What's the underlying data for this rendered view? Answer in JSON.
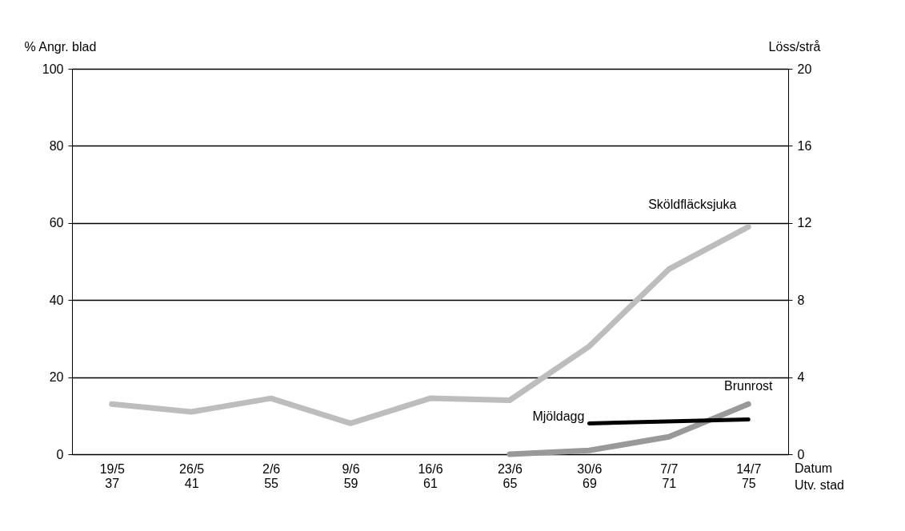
{
  "chart_data": {
    "type": "line",
    "categories": [
      "19/5\n37",
      "26/5\n41",
      "2/6\n55",
      "9/6\n59",
      "16/6\n61",
      "23/6\n65",
      "30/6\n69",
      "7/7\n71",
      "14/7\n75"
    ],
    "xlabel": "Datum\nUtv. stad",
    "ylabel": "% Angr. blad",
    "y2label": "Löss/strå",
    "ylim": [
      0,
      100
    ],
    "yticks": [
      0,
      20,
      40,
      60,
      80,
      100
    ],
    "y2lim": [
      0,
      20
    ],
    "y2ticks": [
      0,
      4,
      8,
      12,
      16,
      20
    ],
    "grid": "y",
    "line_style": "solid",
    "marker": "none",
    "series": [
      {
        "name": "Sköldfläcksjuka",
        "color": "#bdbdbd",
        "values": [
          13,
          11,
          14.5,
          8,
          14.5,
          14,
          28,
          48,
          59
        ]
      },
      {
        "name": "Brunrost",
        "color": "#999999",
        "values": [
          null,
          null,
          null,
          null,
          null,
          0,
          1,
          4.5,
          13
        ]
      },
      {
        "name": "Mjöldagg",
        "color": "#000000",
        "values": [
          null,
          null,
          null,
          null,
          null,
          null,
          8,
          null,
          9
        ]
      }
    ]
  }
}
